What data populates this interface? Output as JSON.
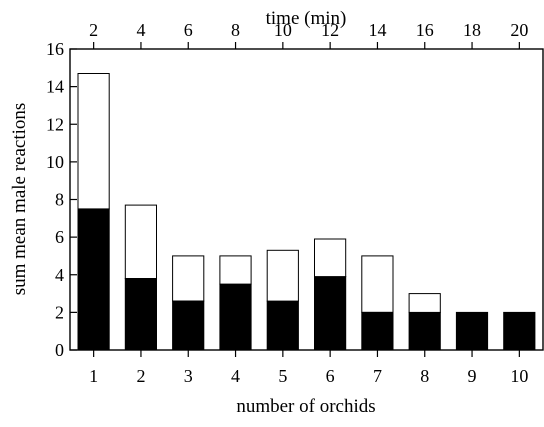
{
  "chart_data": {
    "type": "bar",
    "stacked": true,
    "title": "",
    "xlabel": "number of orchids",
    "ylabel": "sum mean male reactions",
    "x2label": "time (min)",
    "categories": [
      "1",
      "2",
      "3",
      "4",
      "5",
      "6",
      "7",
      "8",
      "9",
      "10"
    ],
    "x2_ticks": [
      "2",
      "4",
      "6",
      "8",
      "10",
      "12",
      "14",
      "16",
      "18",
      "20"
    ],
    "ylim": [
      0,
      16
    ],
    "yticks": [
      "0",
      "2",
      "4",
      "6",
      "8",
      "10",
      "12",
      "14",
      "16"
    ],
    "series": [
      {
        "fill": "#000000",
        "values": [
          7.5,
          3.8,
          2.6,
          3.5,
          2.6,
          3.9,
          2.0,
          2.0,
          2.0,
          2.0
        ]
      },
      {
        "fill": "#ffffff",
        "values": [
          7.2,
          3.9,
          2.4,
          1.5,
          2.7,
          2.0,
          3.0,
          1.0,
          0.0,
          0.0
        ]
      }
    ],
    "grid": false,
    "legend": "none"
  }
}
